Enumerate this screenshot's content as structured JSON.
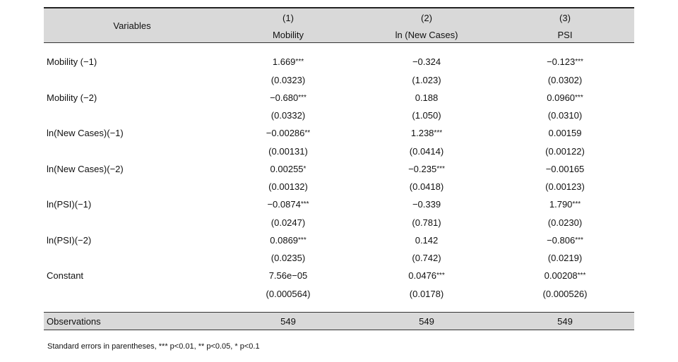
{
  "header": {
    "variables_label": "Variables",
    "columns": [
      {
        "number": "(1)",
        "name": "Mobility"
      },
      {
        "number": "(2)",
        "name": "ln (New Cases)"
      },
      {
        "number": "(3)",
        "name": "PSI"
      }
    ]
  },
  "rows": [
    {
      "label": "Mobility (−1)",
      "coef": [
        "1.669",
        "−0.324",
        "−0.123"
      ],
      "stars": [
        "***",
        "",
        "***"
      ],
      "se": [
        "(0.0323)",
        "(1.023)",
        "(0.0302)"
      ]
    },
    {
      "label": "Mobility (−2)",
      "coef": [
        "−0.680",
        "0.188",
        "0.0960"
      ],
      "stars": [
        "***",
        "",
        "***"
      ],
      "se": [
        "(0.0332)",
        "(1.050)",
        "(0.0310)"
      ]
    },
    {
      "label": "ln(New Cases)(−1)",
      "coef": [
        "−0.00286",
        "1.238",
        "0.00159"
      ],
      "stars": [
        "**",
        "***",
        ""
      ],
      "se": [
        "(0.00131)",
        "(0.0414)",
        "(0.00122)"
      ]
    },
    {
      "label": "ln(New Cases)(−2)",
      "coef": [
        "0.00255",
        "−0.235",
        "−0.00165"
      ],
      "stars": [
        "*",
        "***",
        ""
      ],
      "se": [
        "(0.00132)",
        "(0.0418)",
        "(0.00123)"
      ]
    },
    {
      "label": "ln(PSI)(−1)",
      "coef": [
        "−0.0874",
        "−0.339",
        "1.790"
      ],
      "stars": [
        "***",
        "",
        "***"
      ],
      "se": [
        "(0.0247)",
        "(0.781)",
        "(0.0230)"
      ]
    },
    {
      "label": "ln(PSI)(−2)",
      "coef": [
        "0.0869",
        "0.142",
        "−0.806"
      ],
      "stars": [
        "***",
        "",
        "***"
      ],
      "se": [
        "(0.0235)",
        "(0.742)",
        "(0.0219)"
      ]
    },
    {
      "label": "Constant",
      "coef": [
        "7.56e−05",
        "0.0476",
        "0.00208"
      ],
      "stars": [
        "",
        "***",
        "***"
      ],
      "se": [
        "(0.000564)",
        "(0.0178)",
        "(0.000526)"
      ]
    }
  ],
  "observations": {
    "label": "Observations",
    "values": [
      "549",
      "549",
      "549"
    ]
  },
  "note": "Standard errors in parentheses,  *** p<0.01, ** p<0.05, * p<0.1"
}
